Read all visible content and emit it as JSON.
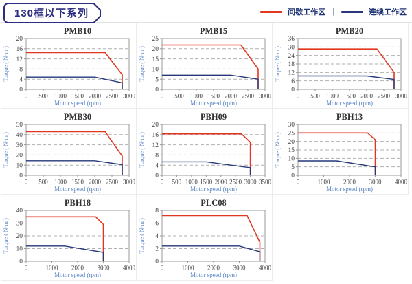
{
  "header": {
    "title": "130框以下系列"
  },
  "legend": {
    "intermittent_label": "间歇工作区",
    "separator": "|",
    "continuous_label": "连续工作区"
  },
  "colors": {
    "intermittent": "#e2371f",
    "continuous": "#26387a",
    "axis_label": "#5b87c5",
    "chart_title": "#333333",
    "tick_label": "#444444",
    "grid_line": "#b0b0b0",
    "frame": "#999999",
    "header_navy": "#2b2d80",
    "cell_border": "#ececec"
  },
  "chart_data": [
    {
      "type": "line",
      "title": "PMB10",
      "xlabel": "Motor speed (rpm)",
      "ylabel": "Torque ( N·m )",
      "xlim": [
        0,
        3000
      ],
      "ylim": [
        0,
        20
      ],
      "xticks": [
        0,
        500,
        1000,
        1500,
        2000,
        2500,
        3000
      ],
      "yticks": [
        0,
        4,
        8,
        12,
        16,
        20
      ],
      "series": [
        {
          "name": "间歇工作区",
          "role": "intermittent",
          "points": [
            [
              0,
              14.5
            ],
            [
              2300,
              14.5
            ],
            [
              2800,
              5.8
            ],
            [
              2800,
              0
            ]
          ]
        },
        {
          "name": "连续工作区",
          "role": "continuous",
          "points": [
            [
              0,
              4.8
            ],
            [
              2000,
              4.8
            ],
            [
              2800,
              2.6
            ],
            [
              2800,
              0
            ]
          ]
        }
      ]
    },
    {
      "type": "line",
      "title": "PMB15",
      "xlabel": "Motor speed (rpm)",
      "ylabel": "Torque ( N·m )",
      "xlim": [
        0,
        3000
      ],
      "ylim": [
        0,
        25
      ],
      "xticks": [
        0,
        500,
        1000,
        1500,
        2000,
        2500,
        3000
      ],
      "yticks": [
        0,
        5,
        10,
        15,
        20,
        25
      ],
      "series": [
        {
          "name": "间歇工作区",
          "role": "intermittent",
          "points": [
            [
              0,
              21.8
            ],
            [
              2300,
              21.8
            ],
            [
              2800,
              10
            ],
            [
              2800,
              0
            ]
          ]
        },
        {
          "name": "连续工作区",
          "role": "continuous",
          "points": [
            [
              0,
              7
            ],
            [
              2000,
              7
            ],
            [
              2800,
              5
            ],
            [
              2800,
              0
            ]
          ]
        }
      ]
    },
    {
      "type": "line",
      "title": "PMB20",
      "xlabel": "Motor speed (rpm)",
      "ylabel": "Torque ( N·m )",
      "xlim": [
        0,
        3000
      ],
      "ylim": [
        0,
        36
      ],
      "xticks": [
        0,
        500,
        1000,
        1500,
        2000,
        2500,
        3000
      ],
      "yticks": [
        0,
        6,
        12,
        18,
        24,
        30,
        36
      ],
      "series": [
        {
          "name": "间歇工作区",
          "role": "intermittent",
          "points": [
            [
              0,
              28.6
            ],
            [
              2300,
              28.6
            ],
            [
              2800,
              12
            ],
            [
              2800,
              0
            ]
          ]
        },
        {
          "name": "连续工作区",
          "role": "continuous",
          "points": [
            [
              0,
              9.5
            ],
            [
              2000,
              9.5
            ],
            [
              2800,
              7
            ],
            [
              2800,
              0
            ]
          ]
        }
      ]
    },
    {
      "type": "line",
      "title": "PMB30",
      "xlabel": "Motor speed (rpm)",
      "ylabel": "Torque ( N·m )",
      "xlim": [
        0,
        3000
      ],
      "ylim": [
        0,
        50
      ],
      "xticks": [
        0,
        500,
        1000,
        1500,
        2000,
        2500,
        3000
      ],
      "yticks": [
        0,
        10,
        20,
        30,
        40,
        50
      ],
      "series": [
        {
          "name": "间歇工作区",
          "role": "intermittent",
          "points": [
            [
              0,
              43
            ],
            [
              2300,
              43
            ],
            [
              2800,
              19
            ],
            [
              2800,
              0
            ]
          ]
        },
        {
          "name": "连续工作区",
          "role": "continuous",
          "points": [
            [
              0,
              14.3
            ],
            [
              2000,
              14.3
            ],
            [
              2800,
              10.5
            ],
            [
              2800,
              0
            ]
          ]
        }
      ]
    },
    {
      "type": "line",
      "title": "PBH09",
      "xlabel": "Motor speed (rpm)",
      "ylabel": "Torque ( N·m )",
      "xlim": [
        0,
        3500
      ],
      "ylim": [
        0,
        20
      ],
      "xticks": [
        0,
        500,
        1000,
        1500,
        2000,
        2500,
        3000,
        3500
      ],
      "yticks": [
        0,
        4,
        8,
        12,
        16,
        20
      ],
      "series": [
        {
          "name": "间歇工作区",
          "role": "intermittent",
          "points": [
            [
              0,
              16.3
            ],
            [
              2700,
              16.3
            ],
            [
              3000,
              13
            ],
            [
              3000,
              0
            ]
          ]
        },
        {
          "name": "连续工作区",
          "role": "continuous",
          "points": [
            [
              0,
              5.3
            ],
            [
              1500,
              5.3
            ],
            [
              3000,
              3
            ],
            [
              3000,
              0
            ]
          ]
        }
      ]
    },
    {
      "type": "line",
      "title": "PBH13",
      "xlabel": "Motor speed (rpm)",
      "ylabel": "Torque ( N·m )",
      "xlim": [
        0,
        4000
      ],
      "ylim": [
        0,
        30
      ],
      "xticks": [
        0,
        1000,
        2000,
        3000,
        4000
      ],
      "yticks": [
        0,
        5,
        10,
        15,
        20,
        25,
        30
      ],
      "series": [
        {
          "name": "间歇工作区",
          "role": "intermittent",
          "points": [
            [
              0,
              25
            ],
            [
              2700,
              25
            ],
            [
              3000,
              21
            ],
            [
              3000,
              0
            ]
          ]
        },
        {
          "name": "连续工作区",
          "role": "continuous",
          "points": [
            [
              0,
              8.5
            ],
            [
              1500,
              8.5
            ],
            [
              3000,
              5
            ],
            [
              3000,
              0
            ]
          ]
        }
      ]
    },
    {
      "type": "line",
      "title": "PBH18",
      "xlabel": "Motor speed (rpm)",
      "ylabel": "Torque ( N·m )",
      "xlim": [
        0,
        4000
      ],
      "ylim": [
        0,
        40
      ],
      "xticks": [
        0,
        1000,
        2000,
        3000,
        4000
      ],
      "yticks": [
        0,
        10,
        20,
        30,
        40
      ],
      "series": [
        {
          "name": "间歇工作区",
          "role": "intermittent",
          "points": [
            [
              0,
              35
            ],
            [
              2700,
              35
            ],
            [
              3000,
              29
            ],
            [
              3000,
              0
            ]
          ]
        },
        {
          "name": "连续工作区",
          "role": "continuous",
          "points": [
            [
              0,
              12
            ],
            [
              1500,
              12
            ],
            [
              3000,
              7
            ],
            [
              3000,
              0
            ]
          ]
        }
      ]
    },
    {
      "type": "line",
      "title": "PLC08",
      "xlabel": "Motor speed (rpm)",
      "ylabel": "Torque ( N·m )",
      "xlim": [
        0,
        4000
      ],
      "ylim": [
        0,
        8
      ],
      "xticks": [
        0,
        1000,
        2000,
        3000,
        4000
      ],
      "yticks": [
        0,
        2,
        4,
        6,
        8
      ],
      "series": [
        {
          "name": "间歇工作区",
          "role": "intermittent",
          "points": [
            [
              0,
              7.2
            ],
            [
              3300,
              7.2
            ],
            [
              3800,
              3
            ],
            [
              3800,
              0
            ]
          ]
        },
        {
          "name": "连续工作区",
          "role": "continuous",
          "points": [
            [
              0,
              2.4
            ],
            [
              3000,
              2.4
            ],
            [
              3800,
              1.5
            ],
            [
              3800,
              0
            ]
          ]
        }
      ]
    }
  ]
}
